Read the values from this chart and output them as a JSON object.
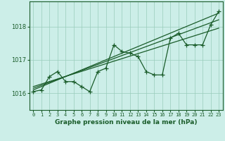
{
  "background_color": "#cceee8",
  "grid_color": "#99ccbb",
  "line_color": "#1a5c2a",
  "text_color": "#1a5c2a",
  "xlabel": "Graphe pression niveau de la mer (hPa)",
  "ylim": [
    1015.5,
    1018.75
  ],
  "xlim": [
    -0.5,
    23.5
  ],
  "yticks": [
    1016,
    1017,
    1018
  ],
  "xticks": [
    0,
    1,
    2,
    3,
    4,
    5,
    6,
    7,
    8,
    9,
    10,
    11,
    12,
    13,
    14,
    15,
    16,
    17,
    18,
    19,
    20,
    21,
    22,
    23
  ],
  "main_x": [
    0,
    1,
    2,
    3,
    4,
    5,
    6,
    7,
    8,
    9,
    10,
    11,
    12,
    13,
    14,
    15,
    16,
    17,
    18,
    19,
    20,
    21,
    22,
    23
  ],
  "main_y": [
    1016.05,
    1016.1,
    1016.5,
    1016.65,
    1016.35,
    1016.35,
    1016.2,
    1016.05,
    1016.65,
    1016.75,
    1017.45,
    1017.25,
    1017.2,
    1017.1,
    1016.65,
    1016.55,
    1016.55,
    1017.65,
    1017.8,
    1017.45,
    1017.45,
    1017.45,
    1018.05,
    1018.45
  ],
  "trend1_x": [
    0,
    23
  ],
  "trend1_y": [
    1016.1,
    1018.4
  ],
  "trend2_x": [
    0,
    23
  ],
  "trend2_y": [
    1016.15,
    1018.2
  ],
  "trend3_x": [
    0,
    23
  ],
  "trend3_y": [
    1016.2,
    1017.95
  ],
  "marker": "+",
  "markersize": 4,
  "linewidth": 0.9
}
